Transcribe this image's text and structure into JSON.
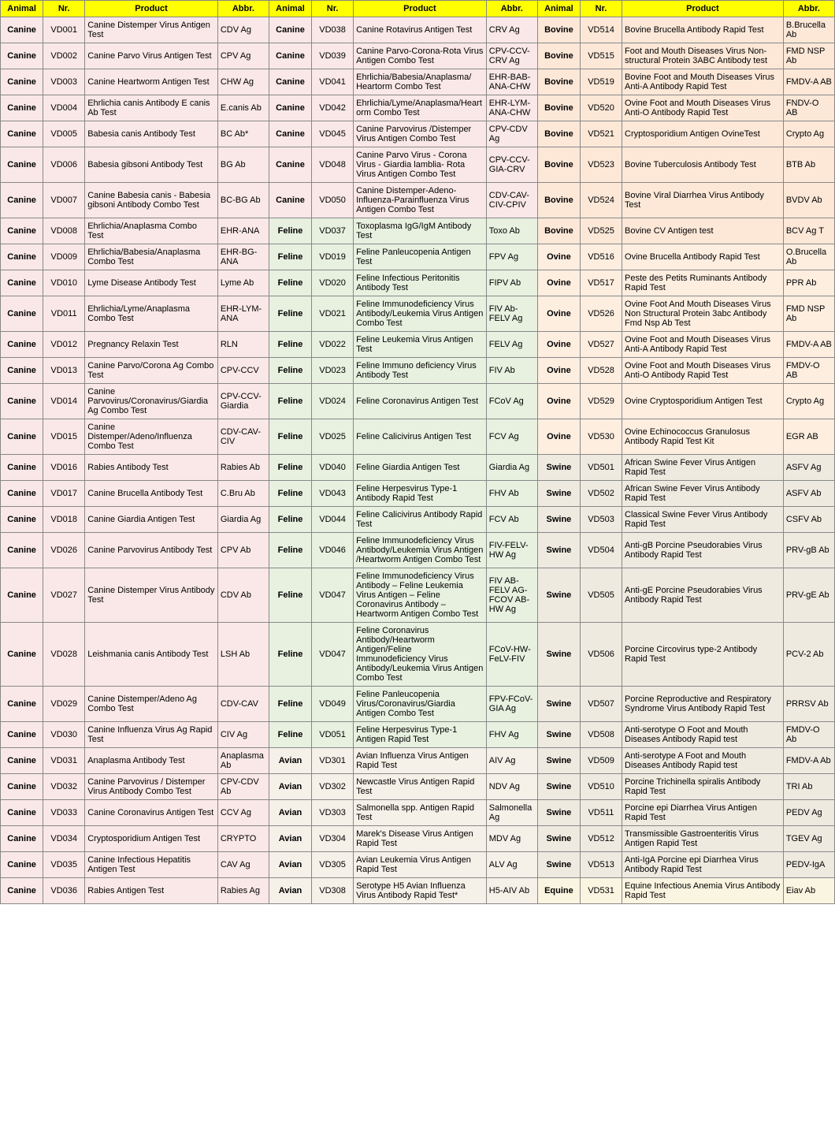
{
  "headers": {
    "animal": "Animal",
    "nr": "Nr.",
    "product": "Product",
    "abbr": "Abbr."
  },
  "colors": {
    "Canine": "#fae8e8",
    "Feline": "#e8f0e0",
    "Avian": "#f5f0e8",
    "Bovine": "#fde8d8",
    "Ovine": "#fdeee0",
    "Swine": "#eeeae0",
    "Equine": "#faf5e0"
  },
  "columns": [
    [
      {
        "animal": "Canine",
        "nr": "VD001",
        "product": "Canine Distemper Virus Antigen Test",
        "abbr": "CDV Ag"
      },
      {
        "animal": "Canine",
        "nr": "VD002",
        "product": "Canine Parvo Virus Antigen Test",
        "abbr": "CPV Ag"
      },
      {
        "animal": "Canine",
        "nr": "VD003",
        "product": "Canine Heartworm Antigen Test",
        "abbr": "CHW Ag"
      },
      {
        "animal": "Canine",
        "nr": "VD004",
        "product": "Ehrlichia canis Antibody E canis Ab Test",
        "abbr": "E.canis Ab"
      },
      {
        "animal": "Canine",
        "nr": "VD005",
        "product": "Babesia canis Antibody Test",
        "abbr": "BC Ab*"
      },
      {
        "animal": "Canine",
        "nr": "VD006",
        "product": "Babesia gibsoni Antibody Test",
        "abbr": "BG Ab"
      },
      {
        "animal": "Canine",
        "nr": "VD007",
        "product": "Canine Babesia canis - Babesia gibsoni Antibody Combo Test",
        "abbr": "BC-BG Ab"
      },
      {
        "animal": "Canine",
        "nr": "VD008",
        "product": "Ehrlichia/Anaplasma Combo Test",
        "abbr": "EHR-ANA"
      },
      {
        "animal": "Canine",
        "nr": "VD009",
        "product": "Ehrlichia/Babesia/Anaplasma Combo Test",
        "abbr": "EHR-BG-ANA"
      },
      {
        "animal": "Canine",
        "nr": "VD010",
        "product": "Lyme Disease Antibody Test",
        "abbr": "Lyme Ab"
      },
      {
        "animal": "Canine",
        "nr": "VD011",
        "product": "Ehrlichia/Lyme/Anaplasma Combo Test",
        "abbr": "EHR-LYM-ANA"
      },
      {
        "animal": "Canine",
        "nr": "VD012",
        "product": "Pregnancy Relaxin Test",
        "abbr": "RLN"
      },
      {
        "animal": "Canine",
        "nr": "VD013",
        "product": "Canine Parvo/Corona Ag Combo Test",
        "abbr": "CPV-CCV"
      },
      {
        "animal": "Canine",
        "nr": "VD014",
        "product": "Canine Parvovirus/Coronavirus/Giardia Ag Combo Test",
        "abbr": "CPV-CCV-Giardia"
      },
      {
        "animal": "Canine",
        "nr": "VD015",
        "product": "Canine Distemper/Adeno/Influenza Combo Test",
        "abbr": "CDV-CAV-CIV"
      },
      {
        "animal": "Canine",
        "nr": "VD016",
        "product": "Rabies Antibody Test",
        "abbr": "Rabies Ab"
      },
      {
        "animal": "Canine",
        "nr": "VD017",
        "product": "Canine Brucella Antibody Test",
        "abbr": "C.Bru Ab"
      },
      {
        "animal": "Canine",
        "nr": "VD018",
        "product": "Canine Giardia Antigen Test",
        "abbr": "Giardia Ag"
      },
      {
        "animal": "Canine",
        "nr": "VD026",
        "product": "Canine Parvovirus Antibody Test",
        "abbr": "CPV Ab"
      },
      {
        "animal": "Canine",
        "nr": "VD027",
        "product": "Canine Distemper Virus Antibody Test",
        "abbr": "CDV Ab"
      },
      {
        "animal": "Canine",
        "nr": "VD028",
        "product": "Leishmania canis Antibody Test",
        "abbr": "LSH Ab"
      },
      {
        "animal": "Canine",
        "nr": "VD029",
        "product": "Canine Distemper/Adeno Ag Combo Test",
        "abbr": "CDV-CAV"
      },
      {
        "animal": "Canine",
        "nr": "VD030",
        "product": "Canine Influenza Virus Ag Rapid Test",
        "abbr": "CIV Ag"
      },
      {
        "animal": "Canine",
        "nr": "VD031",
        "product": "Anaplasma Antibody Test",
        "abbr": "Anaplasma Ab"
      },
      {
        "animal": "Canine",
        "nr": "VD032",
        "product": "Canine Parvovirus / Distemper Virus Antibody Combo Test",
        "abbr": "CPV-CDV Ab"
      },
      {
        "animal": "Canine",
        "nr": "VD033",
        "product": "Canine Coronavirus Antigen Test",
        "abbr": "CCV Ag"
      },
      {
        "animal": "Canine",
        "nr": "VD034",
        "product": "Cryptosporidium Antigen Test",
        "abbr": "CRYPTO"
      },
      {
        "animal": "Canine",
        "nr": "VD035",
        "product": "Canine Infectious Hepatitis Antigen Test",
        "abbr": "CAV Ag"
      },
      {
        "animal": "Canine",
        "nr": "VD036",
        "product": "Rabies Antigen Test",
        "abbr": "Rabies Ag"
      }
    ],
    [
      {
        "animal": "Canine",
        "nr": "VD038",
        "product": "Canine Rotavirus Antigen Test",
        "abbr": "CRV Ag"
      },
      {
        "animal": "Canine",
        "nr": "VD039",
        "product": "Canine Parvo-Corona-Rota Virus Antigen Combo Test",
        "abbr": "CPV-CCV-CRV Ag"
      },
      {
        "animal": "Canine",
        "nr": "VD041",
        "product": "Ehrlichia/Babesia/Anaplasma/ Heartorm Combo Test",
        "abbr": "EHR-BAB-ANA-CHW"
      },
      {
        "animal": "Canine",
        "nr": "VD042",
        "product": "Ehrlichia/Lyme/Anaplasma/Heartorm Combo Test",
        "abbr": "EHR-LYM-ANA-CHW"
      },
      {
        "animal": "Canine",
        "nr": "VD045",
        "product": "Canine Parvovirus /Distemper Virus Antigen Combo Test",
        "abbr": "CPV-CDV Ag"
      },
      {
        "animal": "Canine",
        "nr": "VD048",
        "product": "Canine Parvo Virus - Corona Virus - Giardia lamblia- Rota Virus Antigen Combo Test",
        "abbr": "CPV-CCV-GIA-CRV"
      },
      {
        "animal": "Canine",
        "nr": "VD050",
        "product": "Canine Distemper-Adeno-Influenza-Parainfluenza Virus Antigen Combo Test",
        "abbr": "CDV-CAV-CIV-CPIV"
      },
      {
        "animal": "Feline",
        "nr": "VD037",
        "product": "Toxoplasma IgG/IgM Antibody Test",
        "abbr": "Toxo Ab"
      },
      {
        "animal": "Feline",
        "nr": "VD019",
        "product": "Feline Panleucopenia Antigen Test",
        "abbr": "FPV Ag"
      },
      {
        "animal": "Feline",
        "nr": "VD020",
        "product": "Feline Infectious Peritonitis Antibody Test",
        "abbr": "FIPV Ab"
      },
      {
        "animal": "Feline",
        "nr": "VD021",
        "product": "Feline Immunodeficiency Virus Antibody/Leukemia Virus Antigen Combo Test",
        "abbr": "FIV Ab-FELV Ag"
      },
      {
        "animal": "Feline",
        "nr": "VD022",
        "product": "Feline Leukemia Virus Antigen Test",
        "abbr": "FELV Ag"
      },
      {
        "animal": "Feline",
        "nr": "VD023",
        "product": "Feline Immuno deficiency Virus Antibody Test",
        "abbr": "FIV Ab"
      },
      {
        "animal": "Feline",
        "nr": "VD024",
        "product": "Feline Coronavirus Antigen Test",
        "abbr": "FCoV Ag"
      },
      {
        "animal": "Feline",
        "nr": "VD025",
        "product": "Feline Calicivirus Antigen Test",
        "abbr": "FCV Ag"
      },
      {
        "animal": "Feline",
        "nr": "VD040",
        "product": "Feline Giardia Antigen Test",
        "abbr": "Giardia Ag"
      },
      {
        "animal": "Feline",
        "nr": "VD043",
        "product": "Feline Herpesvirus Type-1 Antibody Rapid Test",
        "abbr": "FHV Ab"
      },
      {
        "animal": "Feline",
        "nr": "VD044",
        "product": "Feline Calicivirus Antibody Rapid Test",
        "abbr": "FCV Ab"
      },
      {
        "animal": "Feline",
        "nr": "VD046",
        "product": "Feline Immunodeficiency Virus Antibody/Leukemia Virus Antigen /Heartworm Antigen Combo Test",
        "abbr": "FIV-FELV-HW Ag"
      },
      {
        "animal": "Feline",
        "nr": "VD047",
        "product": "Feline Immunodeficiency Virus Antibody – Feline Leukemia Virus Antigen – Feline Coronavirus Antibody – Heartworm Antigen Combo Test",
        "abbr": "FIV AB-FELV AG-FCOV AB-HW Ag"
      },
      {
        "animal": "Feline",
        "nr": "VD047",
        "product": "Feline Coronavirus Antibody/Heartworm Antigen/Feline Immunodeficiency Virus Antibody/Leukemia Virus Antigen Combo Test",
        "abbr": "FCoV-HW-FeLV-FIV"
      },
      {
        "animal": "Feline",
        "nr": "VD049",
        "product": "Feline Panleucopenia Virus/Coronavirus/Giardia Antigen Combo Test",
        "abbr": "FPV-FCoV-GIA Ag"
      },
      {
        "animal": "Feline",
        "nr": "VD051",
        "product": "Feline Herpesvirus Type-1 Antigen Rapid Test",
        "abbr": "FHV Ag"
      },
      {
        "animal": "Avian",
        "nr": "VD301",
        "product": "Avian Influenza Virus Antigen Rapid Test",
        "abbr": "AIV Ag"
      },
      {
        "animal": "Avian",
        "nr": "VD302",
        "product": "Newcastle Virus Antigen Rapid Test",
        "abbr": "NDV Ag"
      },
      {
        "animal": "Avian",
        "nr": "VD303",
        "product": "Salmonella spp. Antigen Rapid Test",
        "abbr": "Salmonella Ag"
      },
      {
        "animal": "Avian",
        "nr": "VD304",
        "product": "Marek's Disease Virus Antigen Rapid Test",
        "abbr": "MDV Ag"
      },
      {
        "animal": "Avian",
        "nr": "VD305",
        "product": "Avian Leukemia Virus Antigen Rapid Test",
        "abbr": "ALV Ag"
      },
      {
        "animal": "Avian",
        "nr": "VD308",
        "product": "Serotype H5 Avian Influenza Virus Antibody Rapid Test*",
        "abbr": "H5-AIV Ab"
      }
    ],
    [
      {
        "animal": "Bovine",
        "nr": "VD514",
        "product": "Bovine Brucella Antibody Rapid Test",
        "abbr": "B.Brucella Ab"
      },
      {
        "animal": "Bovine",
        "nr": "VD515",
        "product": "Foot and Mouth Diseases Virus Non-structural Protein 3ABC Antibody test",
        "abbr": "FMD NSP Ab"
      },
      {
        "animal": "Bovine",
        "nr": "VD519",
        "product": "Bovine Foot and Mouth Diseases Virus Anti-A Antibody Rapid Test",
        "abbr": "FMDV-A AB"
      },
      {
        "animal": "Bovine",
        "nr": "VD520",
        "product": "Ovine Foot and Mouth Diseases Virus Anti-O Antibody Rapid Test",
        "abbr": "FNDV-O AB"
      },
      {
        "animal": "Bovine",
        "nr": "VD521",
        "product": "Cryptosporidium Antigen OvineTest",
        "abbr": "Crypto Ag"
      },
      {
        "animal": "Bovine",
        "nr": "VD523",
        "product": "Bovine Tuberculosis Antibody  Test",
        "abbr": "BTB Ab"
      },
      {
        "animal": "Bovine",
        "nr": "VD524",
        "product": "Bovine Viral Diarrhea Virus Antibody Test",
        "abbr": "BVDV Ab"
      },
      {
        "animal": "Bovine",
        "nr": "VD525",
        "product": "Bovine CV Antigen test",
        "abbr": "BCV Ag T"
      },
      {
        "animal": "Ovine",
        "nr": "VD516",
        "product": "Ovine Brucella Antibody Rapid Test",
        "abbr": "O.Brucella Ab"
      },
      {
        "animal": "Ovine",
        "nr": "VD517",
        "product": "Peste des Petits Ruminants Antibody Rapid Test",
        "abbr": "PPR Ab"
      },
      {
        "animal": "Ovine",
        "nr": "VD526",
        "product": "Ovine Foot And Mouth Diseases Virus Non Structural Protein 3abc Antibody Fmd Nsp Ab Test",
        "abbr": "FMD NSP Ab"
      },
      {
        "animal": "Ovine",
        "nr": "VD527",
        "product": "Ovine Foot and Mouth Diseases Virus Anti-A Antibody Rapid Test",
        "abbr": "FMDV-A AB"
      },
      {
        "animal": "Ovine",
        "nr": "VD528",
        "product": "Ovine Foot and Mouth Diseases Virus Anti-O Antibody Rapid Test",
        "abbr": "FMDV-O AB"
      },
      {
        "animal": "Ovine",
        "nr": "VD529",
        "product": "Ovine Cryptosporidium Antigen Test",
        "abbr": "Crypto Ag"
      },
      {
        "animal": "Ovine",
        "nr": "VD530",
        "product": "Ovine Echinococcus Granulosus Antibody Rapid Test Kit",
        "abbr": "EGR AB"
      },
      {
        "animal": "Swine",
        "nr": "VD501",
        "product": "African Swine Fever Virus Antigen Rapid Test",
        "abbr": "ASFV Ag"
      },
      {
        "animal": "Swine",
        "nr": "VD502",
        "product": "African Swine Fever Virus Antibody Rapid Test",
        "abbr": "ASFV Ab"
      },
      {
        "animal": "Swine",
        "nr": "VD503",
        "product": "Classical Swine Fever Virus Antibody Rapid Test",
        "abbr": "CSFV Ab"
      },
      {
        "animal": "Swine",
        "nr": "VD504",
        "product": "Anti-gB Porcine Pseudorabies Virus Antibody Rapid Test",
        "abbr": "PRV-gB Ab"
      },
      {
        "animal": "Swine",
        "nr": "VD505",
        "product": "Anti-gE Porcine Pseudorabies Virus Antibody Rapid Test",
        "abbr": "PRV-gE Ab"
      },
      {
        "animal": "Swine",
        "nr": "VD506",
        "product": "Porcine Circovirus type-2 Antibody Rapid Test",
        "abbr": "PCV-2 Ab"
      },
      {
        "animal": "Swine",
        "nr": "VD507",
        "product": "Porcine Reproductive and Respiratory Syndrome Virus Antibody Rapid Test",
        "abbr": "PRRSV Ab"
      },
      {
        "animal": "Swine",
        "nr": "VD508",
        "product": "Anti-serotype O Foot and Mouth Diseases Antibody Rapid test",
        "abbr": "FMDV-O Ab"
      },
      {
        "animal": "Swine",
        "nr": "VD509",
        "product": "Anti-serotype A Foot and Mouth Diseases Antibody Rapid test",
        "abbr": "FMDV-A Ab"
      },
      {
        "animal": "Swine",
        "nr": "VD510",
        "product": "Porcine Trichinella spiralis Antibody Rapid Test",
        "abbr": "TRI Ab"
      },
      {
        "animal": "Swine",
        "nr": "VD511",
        "product": "Porcine epi Diarrhea Virus Antigen Rapid Test",
        "abbr": "PEDV Ag"
      },
      {
        "animal": "Swine",
        "nr": "VD512",
        "product": "Transmissible Gastroenteritis Virus Antigen Rapid Test",
        "abbr": "TGEV Ag"
      },
      {
        "animal": "Swine",
        "nr": "VD513",
        "product": "Anti-IgA Porcine epi Diarrhea Virus Antibody Rapid Test",
        "abbr": "PEDV-IgA"
      },
      {
        "animal": "Equine",
        "nr": "VD531",
        "product": "Equine Infectious Anemia Virus Antibody Rapid Test",
        "abbr": "Eiav Ab"
      }
    ]
  ]
}
